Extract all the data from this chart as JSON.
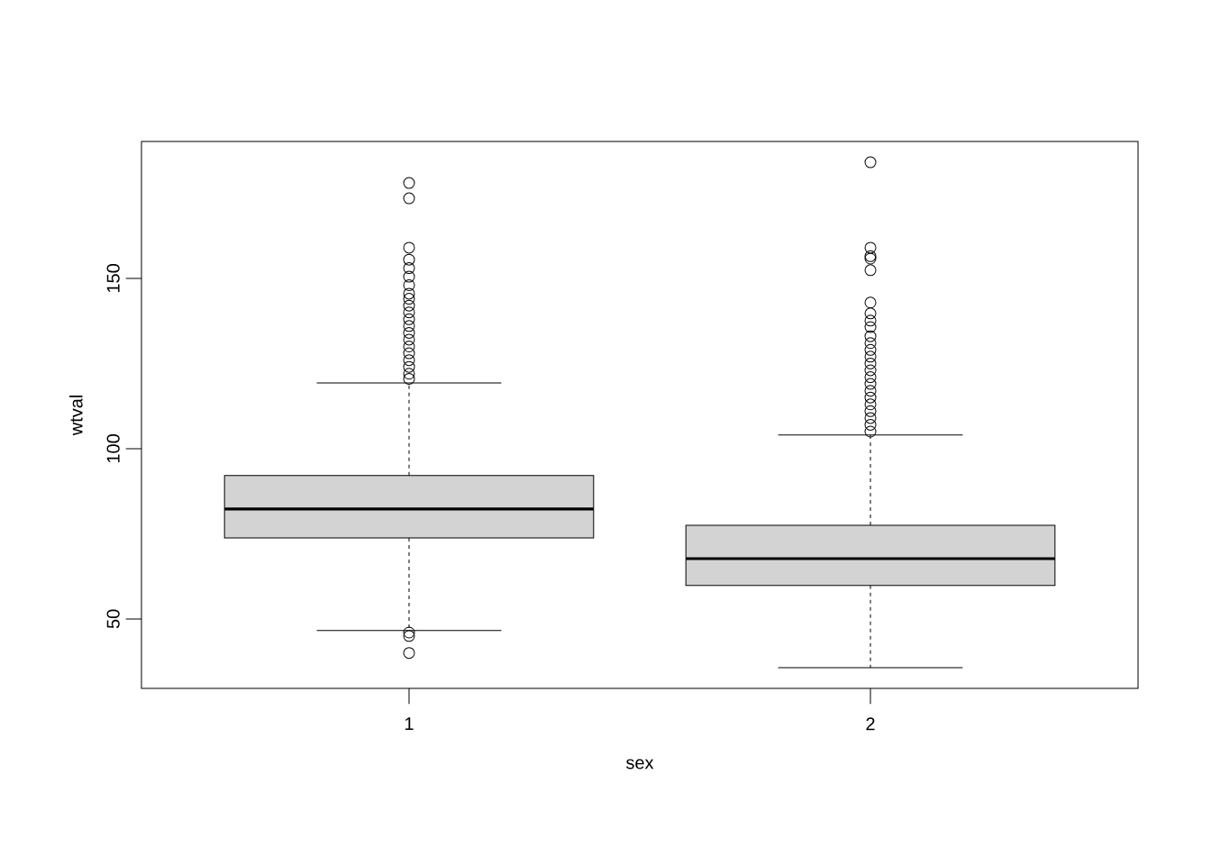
{
  "chart_data": {
    "type": "box",
    "xlabel": "sex",
    "ylabel": "wtval",
    "categories": [
      "1",
      "2"
    ],
    "ylim": [
      29.6,
      190.2
    ],
    "yticks": [
      50,
      100,
      150
    ],
    "marker": "circle",
    "series": [
      {
        "color": "#d3d3d3",
        "boxes": [
          {
            "low": 46.6,
            "q1": 73.8,
            "median": 82.3,
            "q3": 92.1,
            "high": 119.3,
            "outliers": [
              178.0,
              173.5,
              159.0,
              155.5,
              153.0,
              150.5,
              148.0,
              145.5,
              144.0,
              142.0,
              140.0,
              138.0,
              136.0,
              134.0,
              132.0,
              130.0,
              128.0,
              126.0,
              124.0,
              122.0,
              120.5,
              46.0,
              45.0,
              40.0
            ]
          },
          {
            "low": 35.7,
            "q1": 59.8,
            "median": 67.7,
            "q3": 77.5,
            "high": 104.0,
            "outliers": [
              184.1,
              159.0,
              156.5,
              155.8,
              152.4,
              142.9,
              139.7,
              137.6,
              135.7,
              133.0,
              131.0,
              129.0,
              127.0,
              125.0,
              123.0,
              121.0,
              119.0,
              117.0,
              115.0,
              113.0,
              111.0,
              109.0,
              107.0,
              105.0
            ]
          }
        ]
      }
    ]
  }
}
